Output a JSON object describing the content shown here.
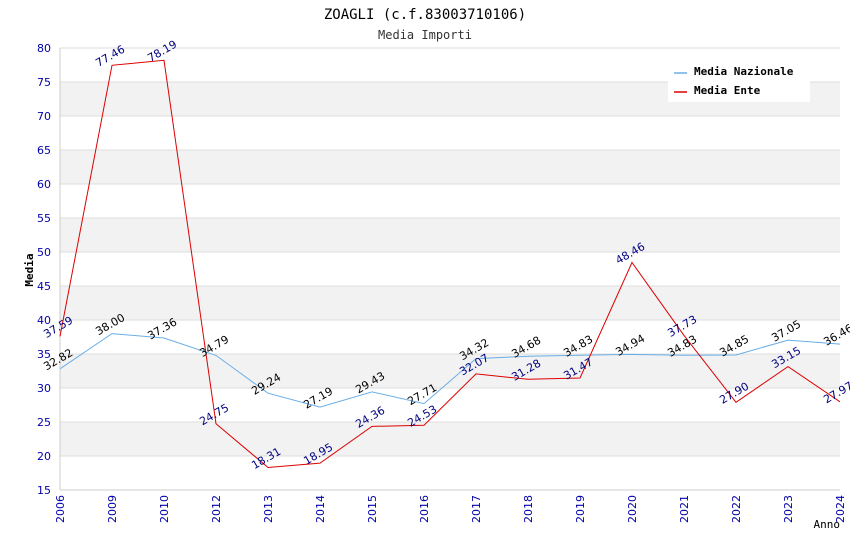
{
  "chart_data": {
    "type": "line",
    "title": "ZOAGLI (c.f.83003710106)",
    "subtitle": "Media Importi",
    "xlabel": "Anno",
    "ylabel": "Media",
    "ylim": [
      15,
      80
    ],
    "yticks": [
      15,
      20,
      25,
      30,
      35,
      40,
      45,
      50,
      55,
      60,
      65,
      70,
      75,
      80
    ],
    "categories": [
      "2006",
      "2009",
      "2010",
      "2012",
      "2013",
      "2014",
      "2015",
      "2016",
      "2017",
      "2018",
      "2019",
      "2020",
      "2021",
      "2022",
      "2023",
      "2024"
    ],
    "series": [
      {
        "name": "Media Nazionale",
        "color": "#6aaee8",
        "values": [
          32.82,
          38.0,
          37.36,
          34.79,
          29.24,
          27.19,
          29.43,
          27.71,
          34.32,
          34.68,
          34.83,
          34.94,
          34.83,
          34.85,
          37.05,
          36.46
        ],
        "labels": [
          "32.82",
          "38.00",
          "37.36",
          "34.79",
          "29.24",
          "27.19",
          "29.43",
          "27.71",
          "34.32",
          "34.68",
          "34.83",
          "34.94",
          "34.83",
          "34.85",
          "37.05",
          "36.46"
        ]
      },
      {
        "name": "Media Ente",
        "color": "#dd0000",
        "values": [
          37.59,
          77.46,
          78.19,
          24.75,
          18.31,
          18.95,
          24.36,
          24.53,
          32.07,
          31.28,
          31.47,
          48.46,
          37.73,
          27.9,
          33.15,
          27.97
        ],
        "labels": [
          "37.59",
          "77.46",
          "78.19",
          "24.75",
          "18.31",
          "18.95",
          "24.36",
          "24.53",
          "32.07",
          "31.28",
          "31.47",
          "48.46",
          "37.73",
          "27.90",
          "33.15",
          "27.97"
        ]
      }
    ],
    "legend_position": "top-right",
    "grid": true
  }
}
